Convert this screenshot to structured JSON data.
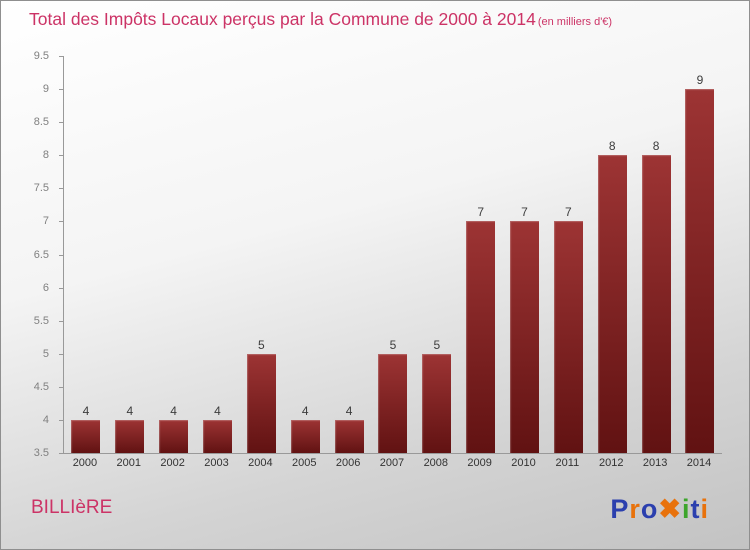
{
  "title": "Total des Impôts Locaux perçus par la Commune de 2000 à 2014",
  "subtitle": "(en milliers d'€)",
  "footer": {
    "commune": "BILLIèRE"
  },
  "logo": {
    "name": "Proxiti",
    "letters": [
      {
        "ch": "P",
        "color": "#2b3fae"
      },
      {
        "ch": "r",
        "color": "#e8720c"
      },
      {
        "ch": "o",
        "color": "#2b3fae"
      },
      {
        "ch": "✖",
        "color": "#e8720c"
      },
      {
        "ch": "i",
        "color": "#3da52c"
      },
      {
        "ch": "t",
        "color": "#2b3fae"
      },
      {
        "ch": "i",
        "color": "#e8720c"
      }
    ]
  },
  "colors": {
    "title": "#cc3366",
    "bar_top": "#9d3434",
    "bar_bottom": "#611212",
    "tick_label": "#808080",
    "value_label": "#3c3c3c"
  },
  "chart_data": {
    "type": "bar",
    "title": "Total des Impôts Locaux perçus par la Commune de 2000 à 2014 (en milliers d'€)",
    "categories": [
      "2000",
      "2001",
      "2002",
      "2003",
      "2004",
      "2005",
      "2006",
      "2007",
      "2008",
      "2009",
      "2010",
      "2011",
      "2012",
      "2013",
      "2014"
    ],
    "values": [
      4,
      4,
      4,
      4,
      5,
      4,
      4,
      5,
      5,
      7,
      7,
      7,
      8,
      8,
      9
    ],
    "xlabel": "",
    "ylabel": "",
    "ylim": [
      3.5,
      9.5
    ],
    "ytick_step": 0.5,
    "grid": false,
    "legend": false,
    "bar_color": "#7a1f1f"
  }
}
